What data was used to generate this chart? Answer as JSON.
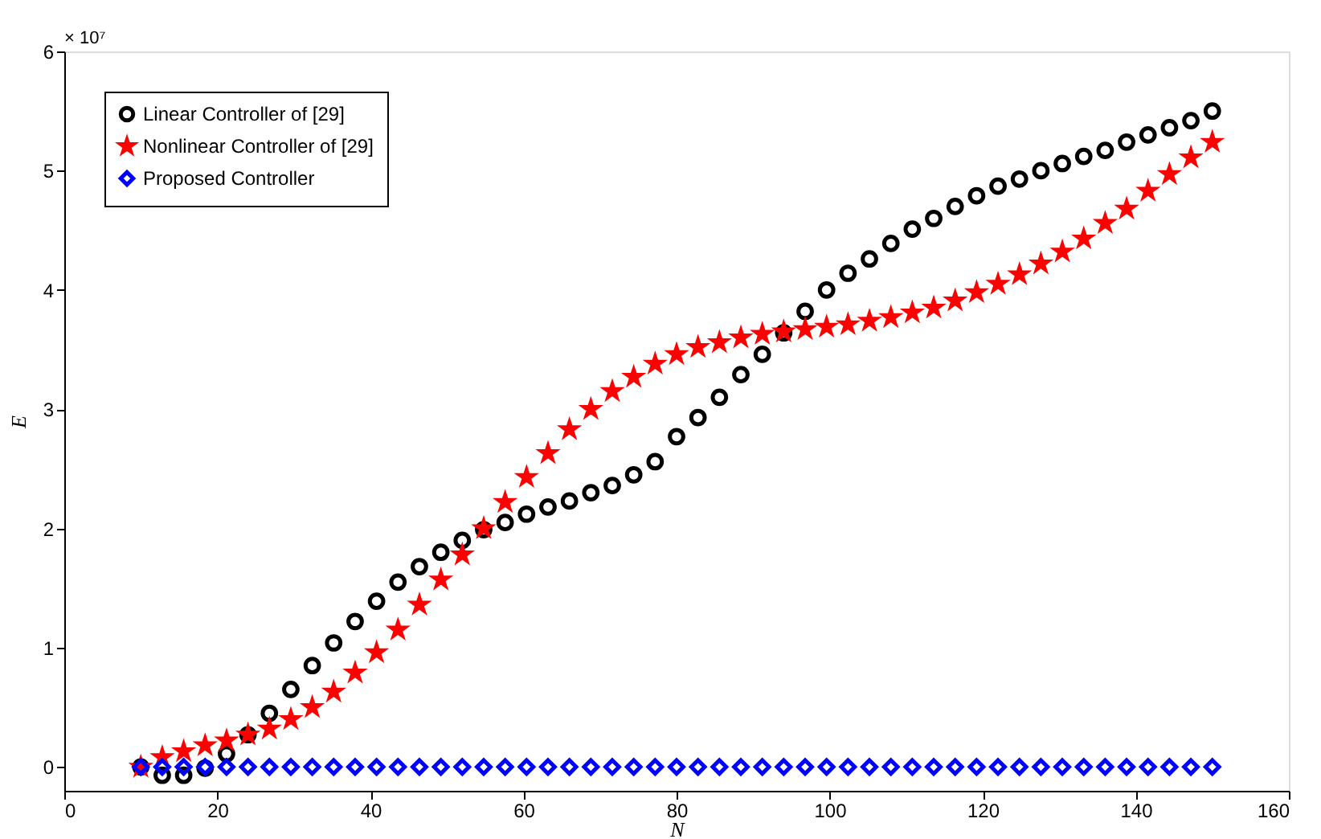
{
  "chart_data": {
    "type": "scatter",
    "xlabel": "N",
    "ylabel": "E",
    "annotations": [
      "× 10⁷"
    ],
    "x": [
      10,
      12.8,
      15.6,
      18.4,
      21.2,
      24,
      26.8,
      29.6,
      32.4,
      35.2,
      38,
      40.8,
      43.6,
      46.4,
      49.2,
      52,
      54.8,
      57.6,
      60.4,
      63.2,
      66,
      68.8,
      71.6,
      74.4,
      77.2,
      80,
      82.8,
      85.6,
      88.4,
      91.2,
      94,
      96.8,
      99.6,
      102.4,
      105.2,
      108,
      110.8,
      113.6,
      116.4,
      119.2,
      122,
      124.8,
      127.6,
      130.4,
      133.2,
      136,
      138.8,
      141.6,
      144.4,
      147.2,
      150
    ],
    "series": [
      {
        "name": "Linear Controller of [29]",
        "color": "#000000",
        "marker": "circle",
        "values": [
          0,
          -0.07,
          -0.07,
          -0.01,
          0.11,
          0.27,
          0.45,
          0.65,
          0.85,
          1.04,
          1.22,
          1.39,
          1.55,
          1.68,
          1.8,
          1.9,
          1.99,
          2.05,
          2.12,
          2.18,
          2.23,
          2.3,
          2.36,
          2.45,
          2.56,
          2.77,
          2.93,
          3.1,
          3.29,
          3.46,
          3.64,
          3.82,
          4.0,
          4.14,
          4.26,
          4.39,
          4.51,
          4.6,
          4.7,
          4.79,
          4.87,
          4.93,
          5.0,
          5.06,
          5.12,
          5.17,
          5.24,
          5.3,
          5.36,
          5.42,
          5.5
        ]
      },
      {
        "name": "Nonlinear Controller of [29]",
        "color": "#ff0000",
        "marker": "star",
        "values": [
          0,
          0.08,
          0.13,
          0.18,
          0.22,
          0.27,
          0.32,
          0.4,
          0.5,
          0.63,
          0.79,
          0.96,
          1.15,
          1.36,
          1.57,
          1.78,
          2.0,
          2.22,
          2.43,
          2.63,
          2.83,
          3.0,
          3.15,
          3.27,
          3.38,
          3.46,
          3.52,
          3.56,
          3.6,
          3.63,
          3.65,
          3.67,
          3.69,
          3.71,
          3.74,
          3.77,
          3.81,
          3.85,
          3.91,
          3.98,
          4.05,
          4.13,
          4.22,
          4.32,
          4.43,
          4.56,
          4.68,
          4.83,
          4.97,
          5.11,
          5.24
        ]
      },
      {
        "name": "Proposed Controller",
        "color": "#0000ff",
        "marker": "diamond",
        "values": [
          0,
          0,
          0,
          0,
          0,
          0,
          0,
          0,
          0,
          0,
          0,
          0,
          0,
          0,
          0,
          0,
          0,
          0,
          0,
          0,
          0,
          0,
          0,
          0,
          0,
          0,
          0,
          0,
          0,
          0,
          0,
          0,
          0,
          0,
          0,
          0,
          0,
          0,
          0,
          0,
          0,
          0,
          0,
          0,
          0,
          0,
          0,
          0,
          0,
          0,
          0
        ]
      }
    ],
    "xlim": [
      0,
      160
    ],
    "xticks": [
      0,
      20,
      40,
      60,
      80,
      100,
      120,
      140,
      160
    ],
    "ylim": [
      -0.2,
      6
    ],
    "yticks": [
      0,
      1,
      2,
      3,
      4,
      5,
      6
    ],
    "grid": false,
    "legend": "top left"
  }
}
